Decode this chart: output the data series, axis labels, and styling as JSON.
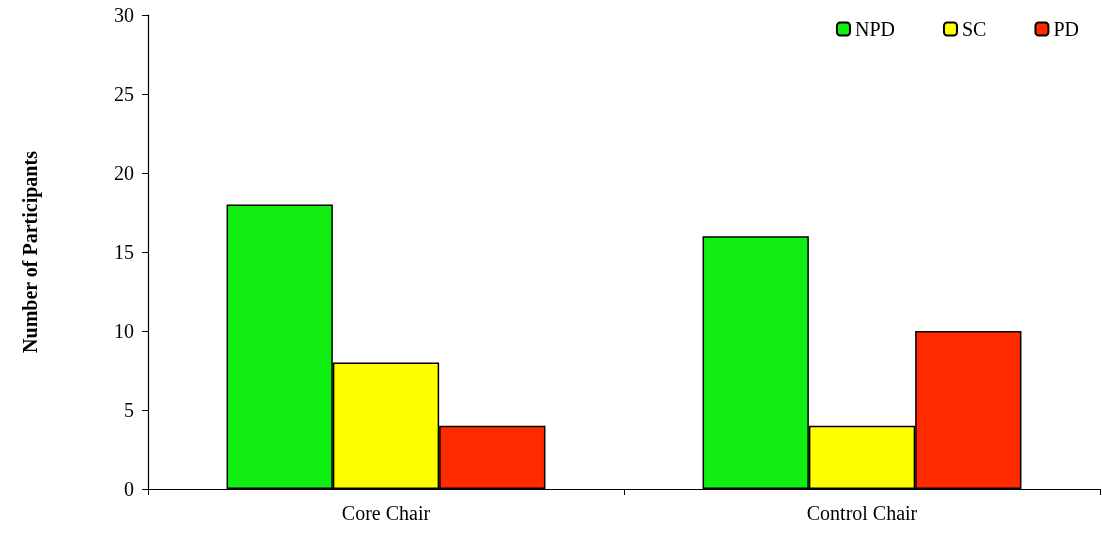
{
  "chart_data": {
    "type": "bar",
    "ylabel": "Number of Participants",
    "categories": [
      "Core Chair",
      "Control Chair"
    ],
    "series": [
      {
        "name": "NPD",
        "color": "#11ee11",
        "values": [
          18,
          16
        ]
      },
      {
        "name": "SC",
        "color": "#ffff00",
        "values": [
          8,
          4
        ]
      },
      {
        "name": "PD",
        "color": "#ff2a00",
        "values": [
          4,
          10
        ]
      }
    ],
    "ylim": [
      0,
      30
    ],
    "yticks": [
      0,
      5,
      10,
      15,
      20,
      25,
      30
    ],
    "grid": false,
    "legend": "top right"
  }
}
